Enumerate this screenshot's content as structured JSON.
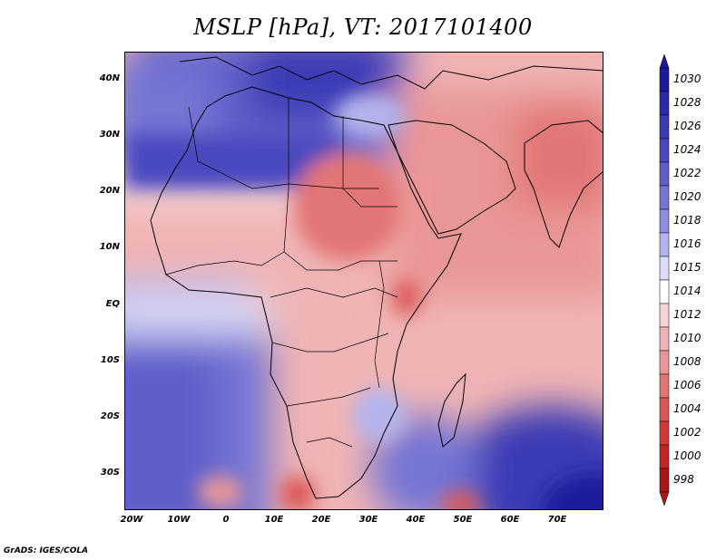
{
  "title": "MSLP [hPa], VT: 2017101400",
  "footer": "GrADS: IGES/COLA",
  "lat_labels": [
    "40N",
    "30N",
    "20N",
    "10N",
    "EQ",
    "10S",
    "20S",
    "30S"
  ],
  "lon_labels": [
    "20W",
    "10W",
    "0",
    "10E",
    "20E",
    "30E",
    "40E",
    "50E",
    "60E",
    "70E"
  ],
  "colorbar": {
    "labels": [
      "1030",
      "1028",
      "1026",
      "1024",
      "1022",
      "1020",
      "1018",
      "1016",
      "1015",
      "1014",
      "1012",
      "1010",
      "1008",
      "1006",
      "1004",
      "1002",
      "1000",
      "998"
    ],
    "colors": [
      "#1c1a9c",
      "#2b2aa9",
      "#3a3ab5",
      "#4a4ac0",
      "#5f5fcb",
      "#7575d4",
      "#8e8edf",
      "#b4b4ec",
      "#dcdcf7",
      "#ffffff",
      "#f6d4d4",
      "#f0b4b4",
      "#e99696",
      "#e27474",
      "#dc5858",
      "#d23a3a",
      "#c32424",
      "#a81818"
    ]
  },
  "map": {
    "extent": {
      "lon_min": -23,
      "lon_max": 80,
      "lat_min": -37,
      "lat_max": 45
    }
  }
}
